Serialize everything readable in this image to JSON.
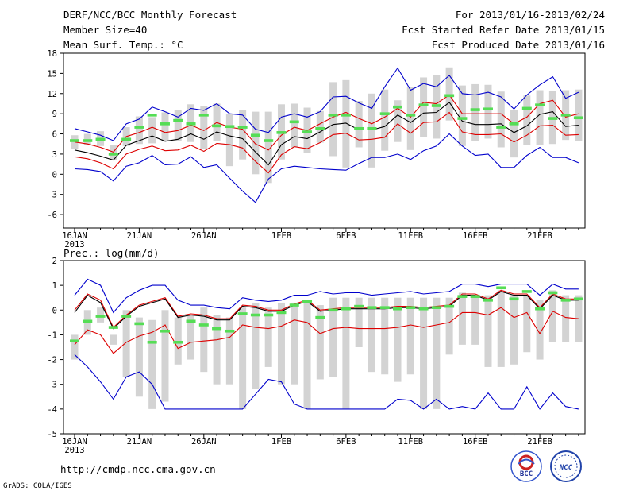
{
  "header": {
    "title": "DERF/NCC/BCC Monthly Forecast",
    "member_size": "Member Size=40",
    "variable": "Mean Surf. Temp.: °C",
    "period": "For 2013/01/16-2013/02/24",
    "start_date": "Fcst Started Refer Date 2013/01/15",
    "produced_date": "Fcst Produced Date 2013/01/16"
  },
  "footer": {
    "url": "http://cmdp.ncc.cma.gov.cn",
    "credit": "GrADS: COLA/IGES",
    "logo_left_text": "BCC",
    "logo_right_text": "NCC"
  },
  "colors": {
    "box": "#d3d3d3",
    "obs": "#55dd55",
    "mean": "#000000",
    "spread": "#dd0000",
    "extreme": "#0000cc"
  },
  "chart_data": [
    {
      "type": "line",
      "title": "Mean Surf. Temp.: °C",
      "ylim": [
        -8,
        18
      ],
      "yticks": [
        -6,
        -3,
        0,
        3,
        6,
        9,
        12,
        15,
        18
      ],
      "ytick_labels": [
        "-6",
        "-3",
        "0",
        "3",
        "6",
        "9",
        "12",
        "15",
        "18"
      ],
      "xticks": [
        {
          "day": 0,
          "label": "16JAN"
        },
        {
          "day": 5,
          "label": "21JAN"
        },
        {
          "day": 10,
          "label": "26JAN"
        },
        {
          "day": 16,
          "label": "1FEB"
        },
        {
          "day": 21,
          "label": "6FEB"
        },
        {
          "day": 26,
          "label": "11FEB"
        },
        {
          "day": 31,
          "label": "16FEB"
        },
        {
          "day": 36,
          "label": "21FEB"
        }
      ],
      "x_sublabel": "2013",
      "days": [
        0,
        1,
        2,
        3,
        4,
        5,
        6,
        7,
        8,
        9,
        10,
        11,
        12,
        13,
        14,
        15,
        16,
        17,
        18,
        19,
        20,
        21,
        22,
        23,
        24,
        25,
        26,
        27,
        28,
        29,
        30,
        31,
        32,
        33,
        34,
        35,
        36,
        37,
        38,
        39
      ],
      "series": [
        {
          "name": "max",
          "color": "extreme",
          "values": [
            6.8,
            6.3,
            5.8,
            5.0,
            7.5,
            8.2,
            10.0,
            9.3,
            8.5,
            9.8,
            9.5,
            10.5,
            9.0,
            8.8,
            6.7,
            6.2,
            8.5,
            9.0,
            8.5,
            9.3,
            11.5,
            11.6,
            10.6,
            9.8,
            13.0,
            15.8,
            12.5,
            13.5,
            13.0,
            14.7,
            12.0,
            11.8,
            12.2,
            11.5,
            9.7,
            11.8,
            13.3,
            14.5,
            11.3,
            12.2
          ]
        },
        {
          "name": "upper",
          "color": "spread",
          "values": [
            4.8,
            4.5,
            4.0,
            3.3,
            5.6,
            6.2,
            7.0,
            6.2,
            6.5,
            7.3,
            6.5,
            7.7,
            7.0,
            6.7,
            4.5,
            3.6,
            5.8,
            7.0,
            6.5,
            7.5,
            8.5,
            9.2,
            8.3,
            7.5,
            8.5,
            9.8,
            8.5,
            10.7,
            10.5,
            11.8,
            9.0,
            9.0,
            9.0,
            9.0,
            7.5,
            8.5,
            10.5,
            11.0,
            8.5,
            9.0
          ]
        },
        {
          "name": "mean",
          "color": "mean",
          "values": [
            3.6,
            3.2,
            2.7,
            2.1,
            4.3,
            5.0,
            5.7,
            4.9,
            5.2,
            6.0,
            5.2,
            6.3,
            5.7,
            5.3,
            3.3,
            1.4,
            4.4,
            5.6,
            5.3,
            6.3,
            7.4,
            7.6,
            6.6,
            6.6,
            7.1,
            8.8,
            7.7,
            9.1,
            9.2,
            10.7,
            7.9,
            7.4,
            7.4,
            7.5,
            6.2,
            7.2,
            8.9,
            9.3,
            7.1,
            7.3
          ]
        },
        {
          "name": "lower",
          "color": "spread",
          "values": [
            2.6,
            2.3,
            1.7,
            0.8,
            3.0,
            3.7,
            4.2,
            3.5,
            3.6,
            4.3,
            3.4,
            4.6,
            4.4,
            3.9,
            1.9,
            0.2,
            2.9,
            4.1,
            3.8,
            4.7,
            5.9,
            6.1,
            5.1,
            5.2,
            5.5,
            7.5,
            6.1,
            7.7,
            7.8,
            9.2,
            6.3,
            5.9,
            5.9,
            6.0,
            4.8,
            5.8,
            7.2,
            7.3,
            5.8,
            5.9
          ]
        },
        {
          "name": "min",
          "color": "extreme",
          "values": [
            0.8,
            0.7,
            0.4,
            -1.0,
            1.2,
            1.7,
            2.8,
            1.4,
            1.5,
            2.6,
            1.0,
            1.4,
            -0.6,
            -2.5,
            -4.2,
            -0.7,
            0.8,
            1.2,
            1.0,
            0.8,
            0.7,
            0.6,
            1.6,
            2.5,
            2.5,
            3.0,
            2.2,
            3.5,
            4.2,
            6.0,
            4.2,
            2.8,
            3.0,
            1.0,
            1.0,
            2.8,
            4.0,
            2.5,
            2.5,
            1.7
          ]
        }
      ],
      "boxes": {
        "low": [
          3.8,
          4.3,
          4.2,
          2.1,
          4.2,
          4.5,
          4.6,
          4.9,
          4.9,
          4.8,
          3.7,
          4.9,
          1.2,
          2.2,
          0.0,
          -1.3,
          2.2,
          4.0,
          3.2,
          4.7,
          2.7,
          1.0,
          4.0,
          1.0,
          3.5,
          4.8,
          3.6,
          5.5,
          5.3,
          8.0,
          4.2,
          5.0,
          5.3,
          4.0,
          2.5,
          4.4,
          4.4,
          4.5,
          5.1,
          4.9
        ],
        "high": [
          5.8,
          6.0,
          6.4,
          4.3,
          7.0,
          8.6,
          8.5,
          9.2,
          9.6,
          10.4,
          10.2,
          10.5,
          9.0,
          9.5,
          9.3,
          9.3,
          10.4,
          10.5,
          9.9,
          9.4,
          13.7,
          14.0,
          10.9,
          12.0,
          12.6,
          11.0,
          13.0,
          14.4,
          14.7,
          15.9,
          13.2,
          13.4,
          13.3,
          12.3,
          9.5,
          11.7,
          12.5,
          12.4,
          12.5,
          12.6
        ]
      },
      "observed": [
        5.0,
        5.0,
        5.2,
        3.0,
        5.2,
        7.0,
        8.8,
        7.5,
        8.0,
        7.5,
        8.8,
        7.2,
        7.1,
        7.0,
        5.8,
        5.0,
        6.2,
        7.8,
        6.3,
        6.8,
        8.8,
        8.8,
        6.8,
        6.8,
        9.0,
        10.0,
        8.8,
        10.3,
        10.2,
        11.7,
        8.3,
        9.6,
        9.7,
        7.0,
        7.5,
        9.8,
        10.3,
        8.3,
        8.8,
        8.4
      ]
    },
    {
      "type": "line",
      "title": "Prec.: log(mm/d)",
      "ylim": [
        -5,
        2
      ],
      "yticks": [
        -5,
        -4,
        -3,
        -2,
        -1,
        0,
        1,
        2
      ],
      "ytick_labels": [
        "-5",
        "-4",
        "-3",
        "-2",
        "-1",
        "0",
        "1",
        "2"
      ],
      "xticks": [
        {
          "day": 0,
          "label": "16JAN"
        },
        {
          "day": 5,
          "label": "21JAN"
        },
        {
          "day": 10,
          "label": "26JAN"
        },
        {
          "day": 16,
          "label": "1FEB"
        },
        {
          "day": 21,
          "label": "6FEB"
        },
        {
          "day": 26,
          "label": "11FEB"
        },
        {
          "day": 31,
          "label": "16FEB"
        },
        {
          "day": 36,
          "label": "21FEB"
        }
      ],
      "x_sublabel": "2013",
      "days": [
        0,
        1,
        2,
        3,
        4,
        5,
        6,
        7,
        8,
        9,
        10,
        11,
        12,
        13,
        14,
        15,
        16,
        17,
        18,
        19,
        20,
        21,
        22,
        23,
        24,
        25,
        26,
        27,
        28,
        29,
        30,
        31,
        32,
        33,
        34,
        35,
        36,
        37,
        38,
        39
      ],
      "series": [
        {
          "name": "max",
          "color": "extreme",
          "values": [
            0.6,
            1.25,
            1.0,
            -0.1,
            0.5,
            0.8,
            1.0,
            1.0,
            0.4,
            0.2,
            0.2,
            0.1,
            0.05,
            0.5,
            0.4,
            0.35,
            0.4,
            0.6,
            0.6,
            0.75,
            0.65,
            0.7,
            0.7,
            0.6,
            0.65,
            0.7,
            0.75,
            0.65,
            0.7,
            0.75,
            1.05,
            1.05,
            0.95,
            1.05,
            1.05,
            1.05,
            0.6,
            1.05,
            0.85,
            0.85
          ]
        },
        {
          "name": "upper",
          "color": "spread",
          "values": [
            0.0,
            0.65,
            0.4,
            -0.7,
            -0.2,
            0.2,
            0.35,
            0.5,
            -0.25,
            -0.15,
            -0.2,
            -0.35,
            -0.35,
            0.2,
            0.15,
            0.0,
            0.0,
            0.25,
            0.4,
            0.0,
            0.05,
            0.1,
            0.1,
            0.1,
            0.1,
            0.15,
            0.15,
            0.1,
            0.15,
            0.2,
            0.65,
            0.65,
            0.45,
            0.8,
            0.65,
            0.65,
            0.1,
            0.65,
            0.45,
            0.45
          ]
        },
        {
          "name": "mean",
          "color": "mean",
          "values": [
            -0.1,
            0.6,
            0.3,
            -0.75,
            -0.25,
            0.15,
            0.3,
            0.45,
            -0.3,
            -0.2,
            -0.25,
            -0.4,
            -0.4,
            0.15,
            0.1,
            -0.05,
            -0.05,
            0.2,
            0.35,
            -0.05,
            0.0,
            0.05,
            0.05,
            0.05,
            0.05,
            0.1,
            0.1,
            0.05,
            0.1,
            0.15,
            0.6,
            0.6,
            0.4,
            0.75,
            0.6,
            0.6,
            0.05,
            0.6,
            0.4,
            0.4
          ]
        },
        {
          "name": "lower",
          "color": "spread",
          "values": [
            -1.4,
            -0.8,
            -1.0,
            -1.75,
            -1.3,
            -1.05,
            -0.9,
            -0.6,
            -1.55,
            -1.3,
            -1.25,
            -1.2,
            -1.1,
            -0.6,
            -0.7,
            -0.75,
            -0.65,
            -0.4,
            -0.5,
            -0.95,
            -0.75,
            -0.7,
            -0.75,
            -0.75,
            -0.75,
            -0.7,
            -0.6,
            -0.7,
            -0.6,
            -0.5,
            -0.1,
            -0.1,
            -0.2,
            0.1,
            -0.3,
            -0.1,
            -0.95,
            -0.05,
            -0.3,
            -0.35
          ]
        },
        {
          "name": "min",
          "color": "extreme",
          "values": [
            -1.8,
            -2.3,
            -2.9,
            -3.6,
            -2.7,
            -2.5,
            -3.0,
            -4.0,
            -4.0,
            -4.0,
            -4.0,
            -4.0,
            -4.0,
            -4.0,
            -3.4,
            -2.8,
            -2.9,
            -3.8,
            -4.0,
            -4.0,
            -4.0,
            -4.0,
            -4.0,
            -4.0,
            -4.0,
            -3.6,
            -3.65,
            -4.0,
            -3.6,
            -4.0,
            -3.9,
            -4.0,
            -3.35,
            -4.0,
            -4.0,
            -3.1,
            -4.0,
            -3.35,
            -3.9,
            -4.0
          ]
        }
      ],
      "boxes": {
        "low": [
          -2.0,
          -1.0,
          -0.5,
          -1.4,
          -2.7,
          -3.5,
          -4.0,
          -3.7,
          -2.2,
          -2.0,
          -2.5,
          -3.0,
          -3.0,
          -4.0,
          -3.2,
          -2.3,
          -3.0,
          -3.0,
          -4.0,
          -2.8,
          -2.7,
          -4.0,
          -1.5,
          -2.5,
          -2.6,
          -2.9,
          -2.6,
          -4.0,
          -4.0,
          -1.8,
          -1.4,
          -1.4,
          -2.3,
          -2.3,
          -2.2,
          -1.7,
          -2.0,
          -1.3,
          -1.3,
          -1.3
        ],
        "high": [
          -1.0,
          0.0,
          0.1,
          -1.0,
          0.0,
          -0.3,
          -0.4,
          0.0,
          -0.3,
          -0.2,
          0.1,
          -0.2,
          -0.3,
          0.1,
          0.3,
          0.1,
          0.3,
          0.3,
          0.3,
          0.2,
          0.5,
          0.5,
          0.5,
          0.5,
          0.5,
          0.5,
          0.5,
          0.5,
          0.5,
          0.5,
          0.7,
          0.6,
          0.6,
          0.8,
          0.6,
          0.6,
          0.4,
          0.8,
          0.6,
          0.6
        ]
      },
      "observed": [
        -1.25,
        -0.45,
        -0.25,
        -0.7,
        -0.25,
        -0.55,
        -1.3,
        -0.85,
        -1.3,
        -0.45,
        -0.6,
        -0.75,
        -0.85,
        -0.15,
        -0.2,
        -0.2,
        -0.1,
        0.2,
        0.35,
        -0.3,
        0.0,
        0.05,
        0.15,
        0.1,
        0.1,
        0.05,
        0.1,
        0.05,
        0.1,
        0.15,
        0.55,
        0.55,
        0.4,
        0.9,
        0.45,
        0.75,
        0.05,
        0.7,
        0.4,
        0.45
      ]
    }
  ]
}
